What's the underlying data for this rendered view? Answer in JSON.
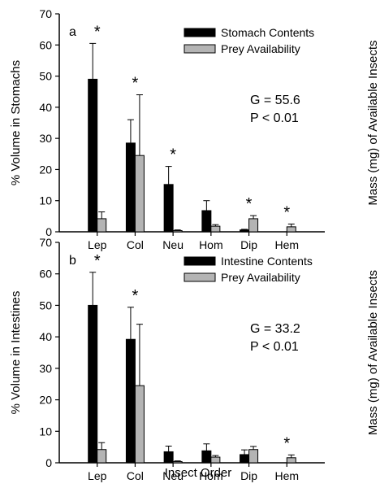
{
  "figure": {
    "xlabel": "Insect Order"
  },
  "chart_data": [
    {
      "type": "bar",
      "panel_label": "a",
      "ylabel": "% Volume in Stomachs",
      "right_axis_label": "Mass (mg) of Available Insects",
      "ylim": [
        0,
        70
      ],
      "yticks": [
        "0",
        "10",
        "20",
        "30",
        "40",
        "50",
        "60",
        "70"
      ],
      "categories": [
        "Lep",
        "Col",
        "Neu",
        "Hom",
        "Dip",
        "Hem"
      ],
      "series": [
        {
          "name": "Stomach Contents",
          "color": "#000000",
          "values": [
            49,
            28.5,
            15.2,
            6.8,
            0.6,
            0
          ],
          "errors": [
            11.5,
            7.5,
            5.8,
            3.2,
            0.2,
            0
          ]
        },
        {
          "name": "Prey Availability",
          "color": "#b4b4b4",
          "values": [
            4.2,
            24.5,
            0.4,
            1.8,
            4.2,
            1.6
          ],
          "errors": [
            2.2,
            19.5,
            0.2,
            0.5,
            1.0,
            0.9
          ]
        }
      ],
      "significant": [
        "*",
        "*",
        "*",
        "",
        "*",
        "*"
      ],
      "stats": [
        "G = 55.6",
        "P < 0.01"
      ]
    },
    {
      "type": "bar",
      "panel_label": "b",
      "ylabel": "% Volume in Intestines",
      "right_axis_label": "Mass (mg) of Available Insects",
      "ylim": [
        0,
        70
      ],
      "yticks": [
        "0",
        "10",
        "20",
        "30",
        "40",
        "50",
        "60",
        "70"
      ],
      "categories": [
        "Lep",
        "Col",
        "Neu",
        "Hom",
        "Dip",
        "Hem"
      ],
      "series": [
        {
          "name": "Intestine Contents",
          "color": "#000000",
          "values": [
            50,
            39.2,
            3.5,
            3.8,
            2.6,
            0
          ],
          "errors": [
            10.5,
            10.2,
            1.8,
            2.2,
            1.5,
            0
          ]
        },
        {
          "name": "Prey Availability",
          "color": "#b4b4b4",
          "values": [
            4.2,
            24.5,
            0.4,
            1.8,
            4.2,
            1.6
          ],
          "errors": [
            2.2,
            19.5,
            0.2,
            0.5,
            1.0,
            0.9
          ]
        }
      ],
      "significant": [
        "*",
        "*",
        "",
        "",
        "",
        "*"
      ],
      "stats": [
        "G = 33.2",
        "P < 0.01"
      ]
    }
  ]
}
